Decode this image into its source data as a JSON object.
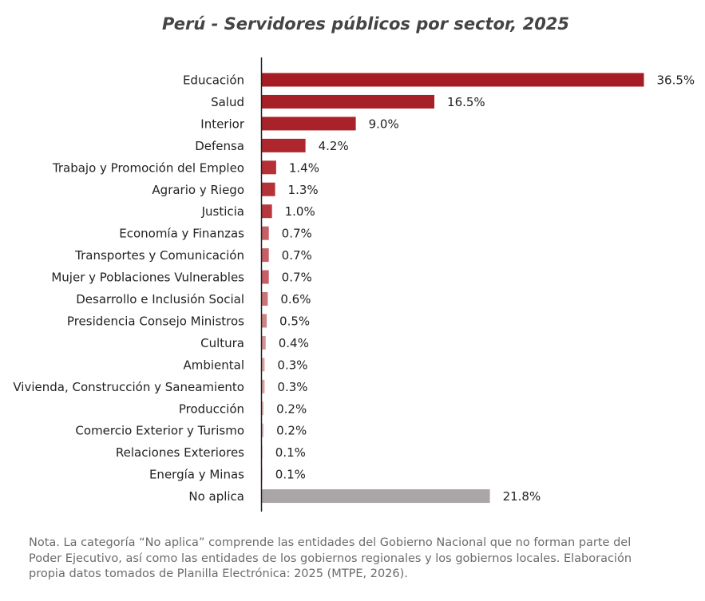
{
  "chart_data": {
    "type": "bar",
    "orientation": "horizontal",
    "title": "Perú - Servidores públicos por sector, 2025",
    "xlabel": "",
    "ylabel": "",
    "unit": "%",
    "grid": false,
    "categories": [
      "Educación",
      "Salud",
      "Interior",
      "Defensa",
      "Trabajo y Promoción del Empleo",
      "Agrario y Riego",
      "Justicia",
      "Economía y Finanzas",
      "Transportes y Comunicación",
      "Mujer y Poblaciones Vulnerables",
      "Desarrollo e Inclusión Social",
      "Presidencia Consejo Ministros",
      "Cultura",
      "Ambiental",
      "Vivienda, Construcción y Saneamiento",
      "Producción",
      "Comercio Exterior y Turismo",
      "Relaciones Exteriores",
      "Energía y Minas",
      "No aplica"
    ],
    "values": [
      36.5,
      16.5,
      9.0,
      4.2,
      1.4,
      1.3,
      1.0,
      0.7,
      0.7,
      0.7,
      0.6,
      0.5,
      0.4,
      0.3,
      0.3,
      0.2,
      0.2,
      0.1,
      0.1,
      21.8
    ],
    "value_labels": [
      "36.5%",
      "16.5%",
      "9.0%",
      "4.2%",
      "1.4%",
      "1.3%",
      "1.0%",
      "0.7%",
      "0.7%",
      "0.7%",
      "0.6%",
      "0.5%",
      "0.4%",
      "0.3%",
      "0.3%",
      "0.2%",
      "0.2%",
      "0.1%",
      "0.1%",
      "21.8%"
    ],
    "bar_colors": [
      "#a51c24",
      "#a71f27",
      "#aa2229",
      "#ae272e",
      "#b43036",
      "#b53238",
      "#b8373c",
      "#c66066",
      "#c66066",
      "#c66066",
      "#ca7479",
      "#ce8286",
      "#d39296",
      "#d9a2a5",
      "#d9a2a5",
      "#dfb4b6",
      "#dfb4b6",
      "#e6c6c8",
      "#e6c6c8",
      "#aaa6a7"
    ],
    "xlim": [
      0,
      36.5
    ]
  },
  "note": "Nota. La categoría “No aplica” comprende las entidades del Gobierno Nacional que no forman parte del Poder Ejecutivo, así como las entidades de los gobiernos regionales y los gobiernos locales. Elaboración propia datos tomados de Planilla Electrónica: 2025 (MTPE, 2026)."
}
